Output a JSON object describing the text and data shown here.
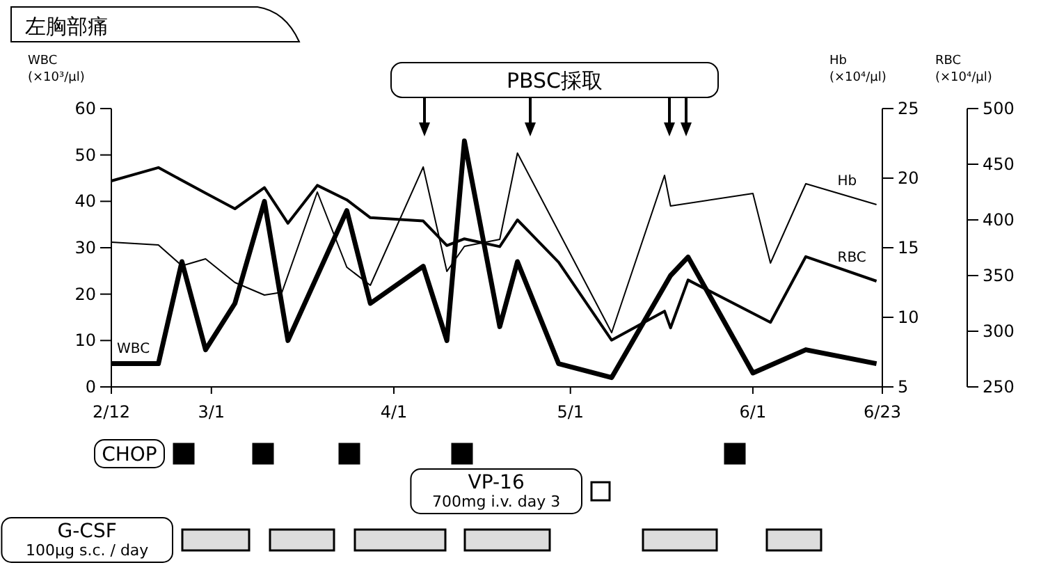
{
  "chart_data": {
    "type": "line",
    "title": "左胸部痛",
    "ylabel": "WBC\n(×10³/μl)",
    "y2label": "Hb\n(×10⁴/μl)",
    "y3label": "RBC\n(×10⁴/μl)",
    "xlim": [
      "--02-12",
      "--06-23"
    ],
    "xticks": [
      {
        "value": "--02-12",
        "label": "2/12"
      },
      {
        "value": "--03-01",
        "label": "3/1"
      },
      {
        "value": "--04-01",
        "label": "4/1"
      },
      {
        "value": "--05-01",
        "label": "5/1"
      },
      {
        "value": "--06-01",
        "label": "6/1"
      },
      {
        "value": "--06-23",
        "label": "6/23"
      }
    ],
    "ylim": [
      0,
      60
    ],
    "yticks": [
      0,
      10,
      20,
      30,
      40,
      50,
      60
    ],
    "y2lim": [
      5,
      25
    ],
    "y2ticks": [
      5,
      10,
      15,
      20,
      25
    ],
    "y3lim": [
      250,
      500
    ],
    "y3ticks": [
      250,
      300,
      350,
      400,
      450,
      500
    ],
    "annotations": [
      "PBSC採取",
      "CHOP",
      "VP-16\n700mg i.v. day 3",
      "G-CSF\n100μg s.c. / day"
    ],
    "series": [
      {
        "name": "WBC",
        "color": "#000000",
        "x": [
          "--02-12",
          "--02-20",
          "--02-24",
          "--02-28",
          "--03-05",
          "--03-10",
          "--03-14",
          "--03-24",
          "--03-28",
          "--04-06",
          "--04-10",
          "--04-13",
          "--04-19",
          "--04-22",
          "--04-29",
          "--05-08",
          "--05-18",
          "--05-21",
          "--06-01",
          "--06-10",
          "--06-22"
        ],
        "values": [
          5,
          5,
          27,
          8,
          18,
          40,
          10,
          38,
          18,
          26,
          10,
          53,
          13,
          27,
          5,
          2,
          24,
          28,
          3,
          8,
          5
        ]
      },
      {
        "name": "Hb",
        "color": "#000000",
        "axis": "y2",
        "x": [
          "--02-12",
          "--02-20",
          "--02-24",
          "--02-28",
          "--03-05",
          "--03-10",
          "--03-13",
          "--03-19",
          "--03-24",
          "--03-28",
          "--04-06",
          "--04-10",
          "--04-13",
          "--04-19",
          "--04-22",
          "--05-08",
          "--05-17",
          "--05-18",
          "--06-01",
          "--06-04",
          "--06-10",
          "--06-22"
        ],
        "values": [
          15.4,
          15.2,
          13.7,
          14.2,
          12.5,
          11.6,
          11.8,
          19.0,
          13.6,
          12.3,
          20.8,
          13.3,
          15.1,
          15.6,
          21.8,
          8.9,
          20.2,
          18.0,
          18.9,
          13.9,
          19.6,
          18.1
        ]
      },
      {
        "name": "RBC",
        "color": "#000000",
        "axis": "y3",
        "x": [
          "--02-12",
          "--02-20",
          "--02-28",
          "--03-05",
          "--03-10",
          "--03-14",
          "--03-19",
          "--03-24",
          "--03-28",
          "--04-06",
          "--04-10",
          "--04-13",
          "--04-19",
          "--04-22",
          "--04-29",
          "--05-08",
          "--05-17",
          "--05-18",
          "--05-21",
          "--06-04",
          "--06-10",
          "--06-22"
        ],
        "values": [
          435,
          447,
          424,
          410,
          429,
          397,
          431,
          418,
          402,
          399,
          377,
          383,
          376,
          400,
          362,
          292,
          318,
          303,
          346,
          308,
          367,
          345
        ]
      }
    ]
  }
}
